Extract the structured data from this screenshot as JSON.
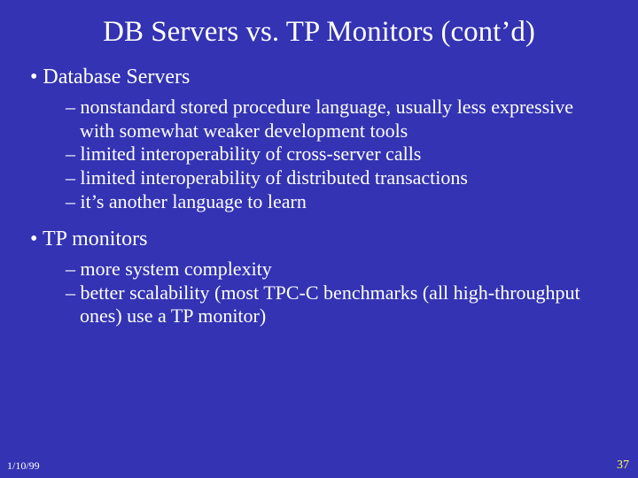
{
  "background_color": "#3333b3",
  "text_color": "#ffffff",
  "accent_color": "#ffff66",
  "font_family": "Times New Roman",
  "slide": {
    "title": "DB Servers vs. TP Monitors (cont’d)",
    "title_fontsize": 33,
    "body_fontsize_l1": 24,
    "body_fontsize_l2": 22,
    "sections": [
      {
        "heading": "Database Servers",
        "items": [
          "nonstandard stored procedure language, usually less expressive with somewhat weaker development tools",
          "limited interoperability of cross-server calls",
          "limited interoperability of distributed transactions",
          "it’s another language to learn"
        ]
      },
      {
        "heading": "TP monitors",
        "items": [
          "more system complexity",
          "better scalability (most TPC-C benchmarks (all high-throughput ones) use a TP monitor)"
        ]
      }
    ]
  },
  "footer": {
    "date": "1/10/99",
    "page": "37"
  }
}
